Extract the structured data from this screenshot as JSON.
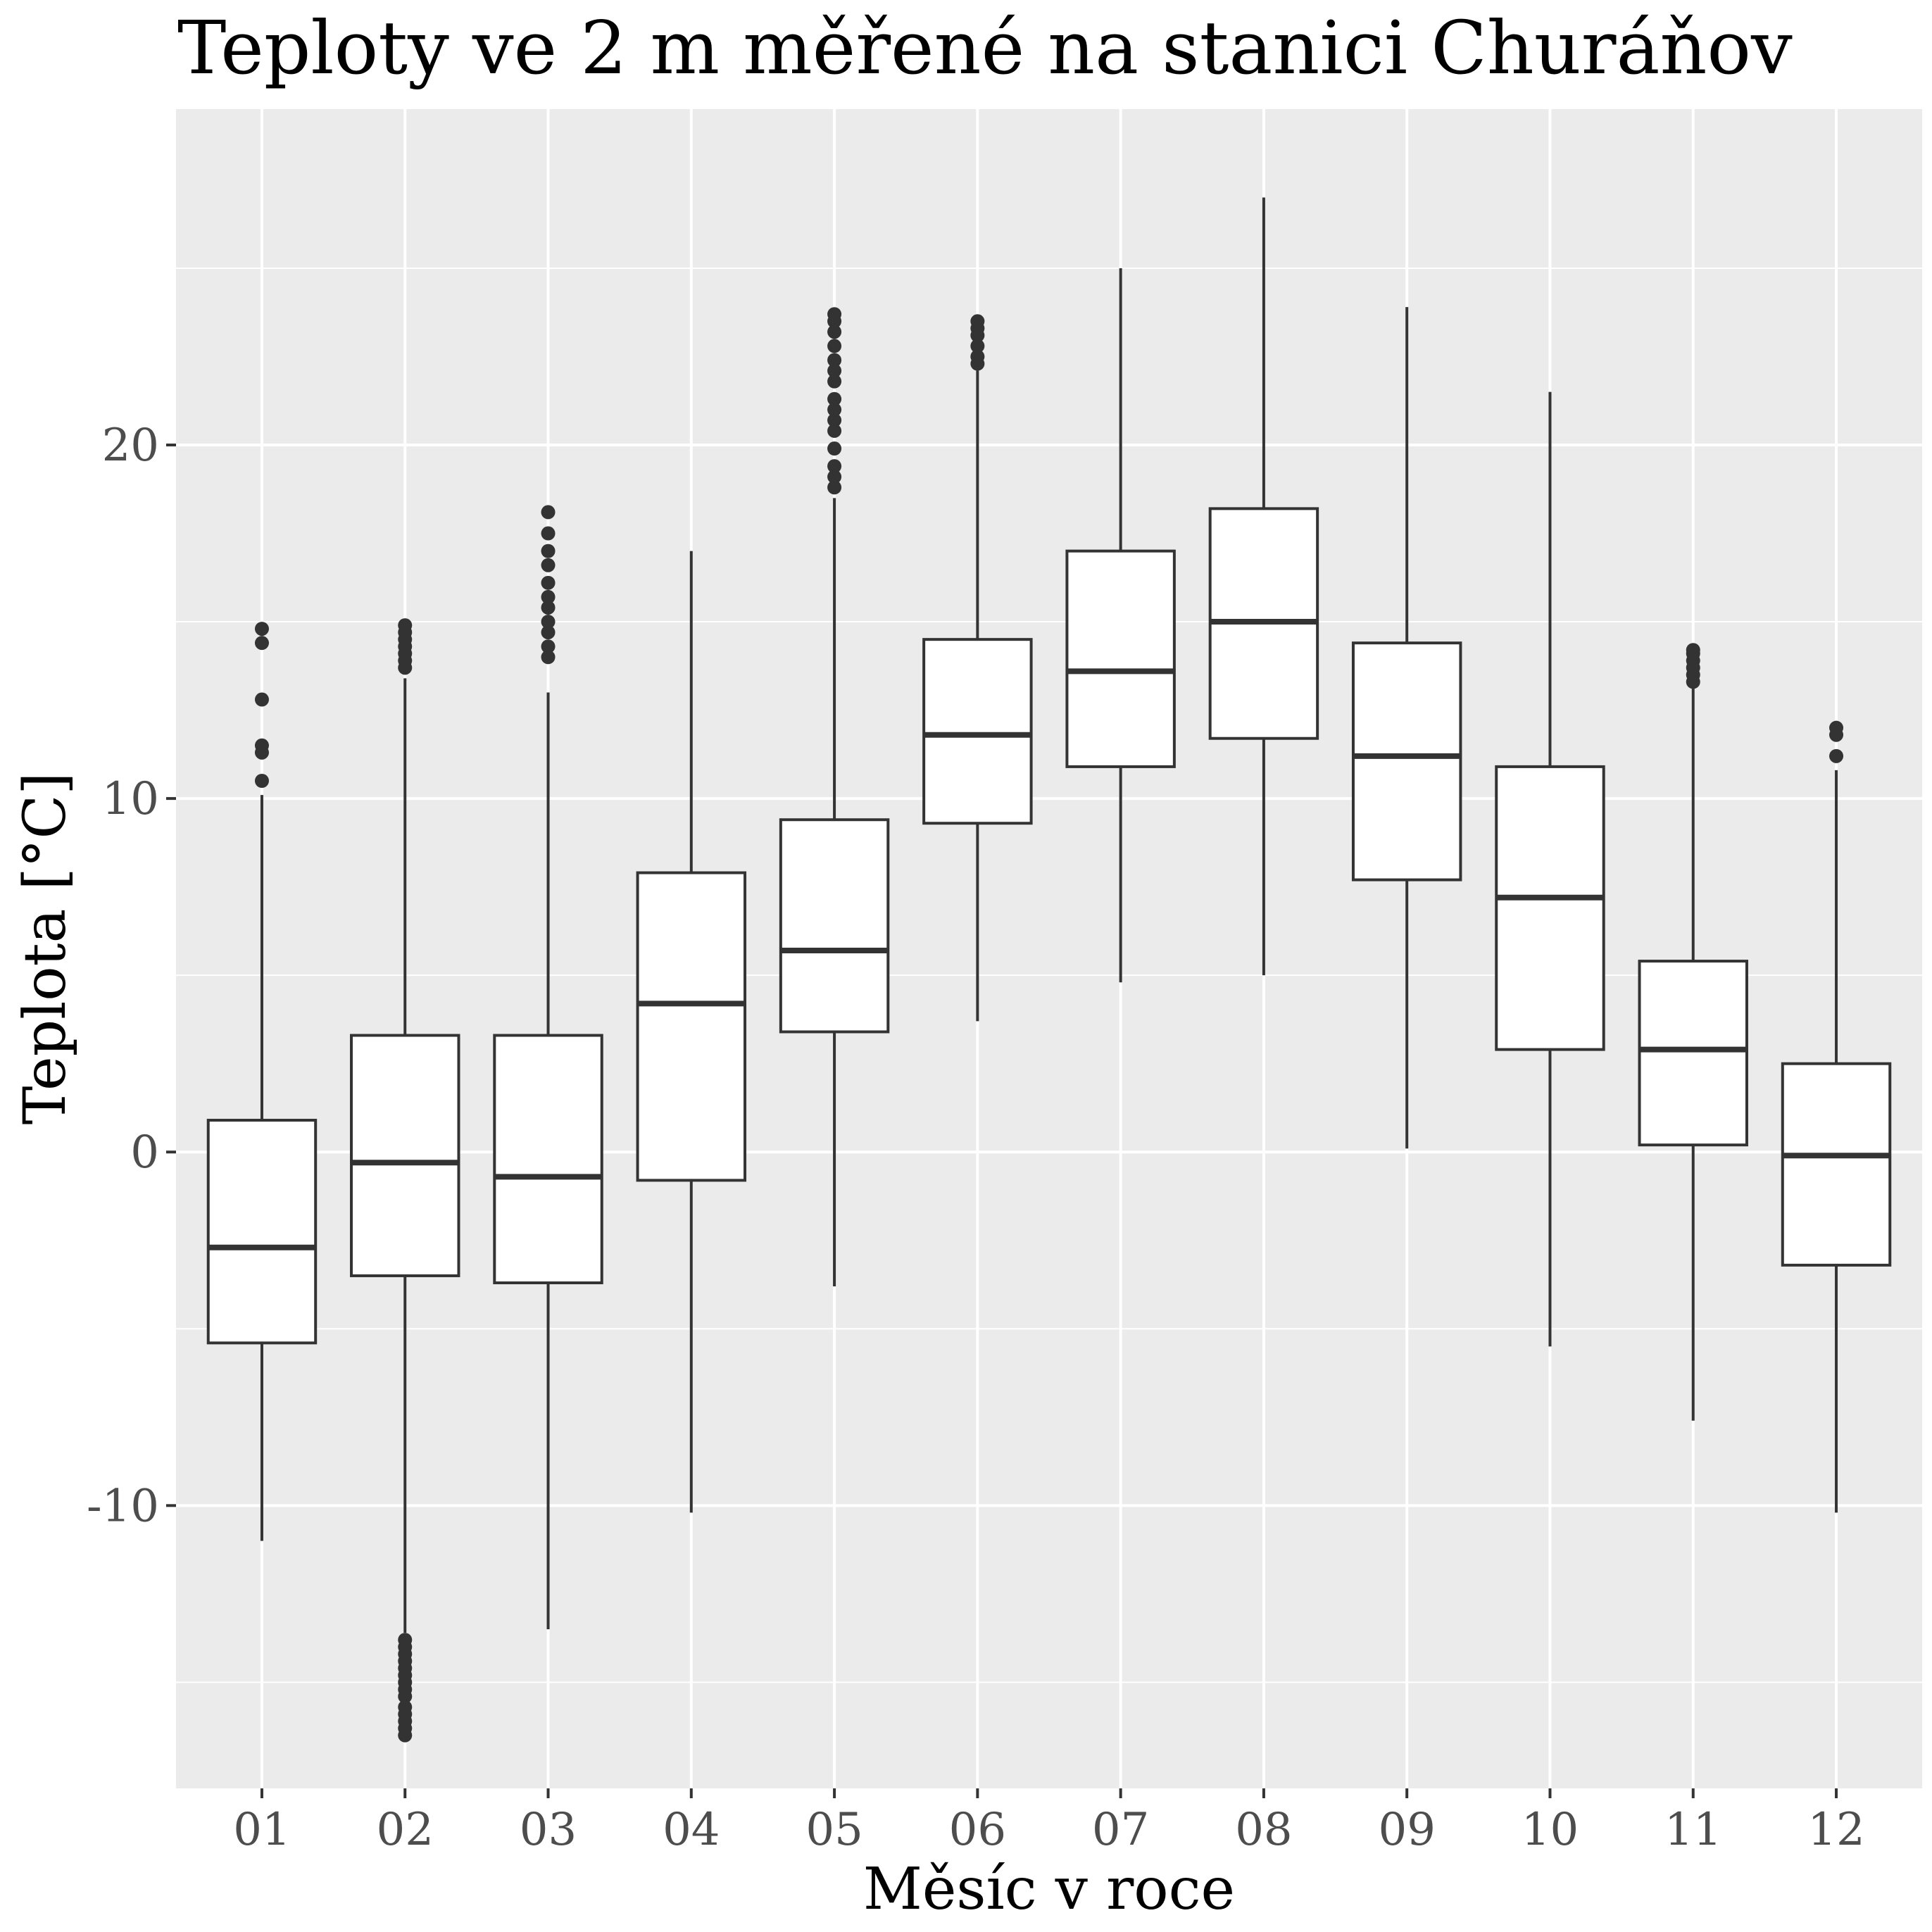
{
  "chart_data": {
    "type": "boxplot",
    "title": "Teploty ve 2 m měřené na stanici Churáňov",
    "xlabel": "Měsíc v roce",
    "ylabel": "Teplota [°C]",
    "ylim": [
      -18,
      29.5
    ],
    "y_ticks": [
      -10,
      0,
      10,
      20
    ],
    "grid": true,
    "background": "#ebebeb",
    "box_fill": "#ffffff",
    "line_color": "#333333",
    "gridline_color": "#ffffff",
    "categories": [
      "01",
      "02",
      "03",
      "04",
      "05",
      "06",
      "07",
      "08",
      "09",
      "10",
      "11",
      "12"
    ],
    "boxes": [
      {
        "month": "01",
        "whisker_low": -11.0,
        "q1": -5.4,
        "median": -2.7,
        "q3": 0.9,
        "whisker_high": 10.1,
        "outliers": [
          10.5,
          11.3,
          11.5,
          12.8,
          14.4,
          14.8
        ]
      },
      {
        "month": "02",
        "whisker_low": -13.6,
        "q1": -3.5,
        "median": -0.3,
        "q3": 3.3,
        "whisker_high": 13.4,
        "outliers": [
          13.7,
          13.9,
          14.1,
          14.3,
          14.5,
          14.7,
          14.9,
          -13.8,
          -14.0,
          -14.2,
          -14.4,
          -14.6,
          -14.8,
          -15.0,
          -15.2,
          -15.4,
          -15.7,
          -15.9,
          -16.1,
          -16.3,
          -16.5
        ]
      },
      {
        "month": "03",
        "whisker_low": -13.5,
        "q1": -3.7,
        "median": -0.7,
        "q3": 3.3,
        "whisker_high": 13.0,
        "outliers": [
          14.0,
          14.3,
          14.7,
          15.0,
          15.4,
          15.7,
          16.1,
          16.6,
          17.0,
          17.5,
          18.1
        ]
      },
      {
        "month": "04",
        "whisker_low": -10.2,
        "q1": -0.8,
        "median": 4.2,
        "q3": 7.9,
        "whisker_high": 17.0,
        "outliers": []
      },
      {
        "month": "05",
        "whisker_low": -3.8,
        "q1": 3.4,
        "median": 5.7,
        "q3": 9.4,
        "whisker_high": 18.5,
        "outliers": [
          18.8,
          19.1,
          19.4,
          19.9,
          20.4,
          20.7,
          21.0,
          21.3,
          21.8,
          22.1,
          22.4,
          22.8,
          23.2,
          23.5,
          23.7
        ]
      },
      {
        "month": "06",
        "whisker_low": 3.7,
        "q1": 9.3,
        "median": 11.8,
        "q3": 14.5,
        "whisker_high": 22.1,
        "outliers": [
          22.3,
          22.5,
          22.8,
          23.1,
          23.3,
          23.5
        ]
      },
      {
        "month": "07",
        "whisker_low": 4.8,
        "q1": 10.9,
        "median": 13.6,
        "q3": 17.0,
        "whisker_high": 25.0,
        "outliers": []
      },
      {
        "month": "08",
        "whisker_low": 5.0,
        "q1": 11.7,
        "median": 15.0,
        "q3": 18.2,
        "whisker_high": 27.0,
        "outliers": []
      },
      {
        "month": "09",
        "whisker_low": 0.1,
        "q1": 7.7,
        "median": 11.2,
        "q3": 14.4,
        "whisker_high": 23.9,
        "outliers": []
      },
      {
        "month": "10",
        "whisker_low": -5.5,
        "q1": 2.9,
        "median": 7.2,
        "q3": 10.9,
        "whisker_high": 21.5,
        "outliers": []
      },
      {
        "month": "11",
        "whisker_low": -7.6,
        "q1": 0.2,
        "median": 2.9,
        "q3": 5.4,
        "whisker_high": 13.2,
        "outliers": [
          13.3,
          13.5,
          13.7,
          13.9,
          14.1,
          14.2
        ]
      },
      {
        "month": "12",
        "whisker_low": -10.2,
        "q1": -3.2,
        "median": -0.1,
        "q3": 2.5,
        "whisker_high": 10.8,
        "outliers": [
          11.2,
          11.8,
          12.0
        ]
      }
    ]
  }
}
